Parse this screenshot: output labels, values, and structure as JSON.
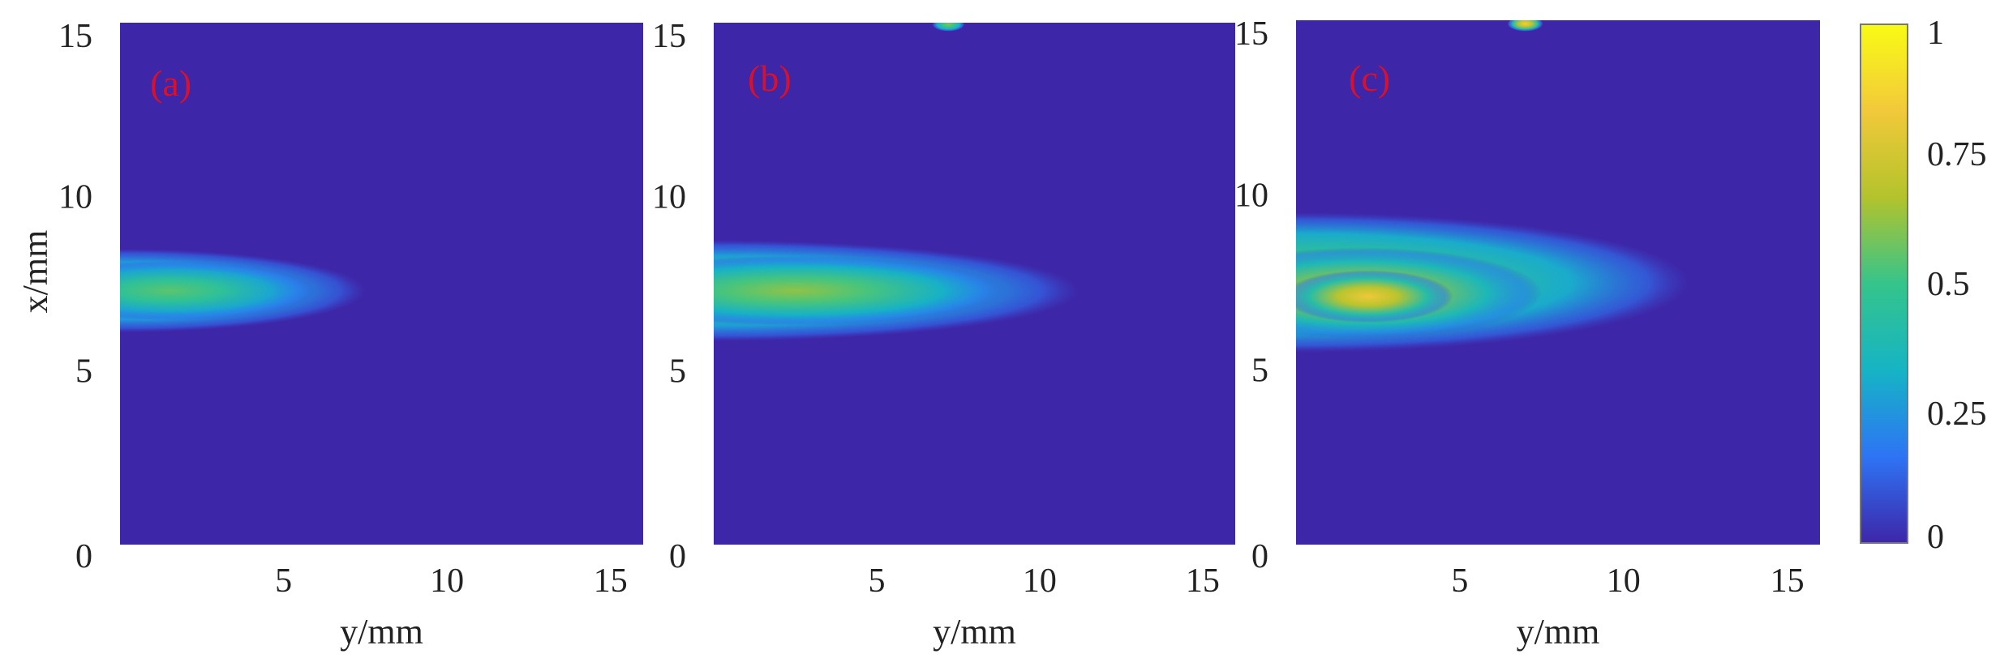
{
  "chart_data": [
    {
      "type": "heatmap",
      "panel_label": "(a)",
      "xlabel": "y/mm",
      "ylabel": "x/mm",
      "xlim": [
        0,
        16
      ],
      "ylim": [
        0,
        15
      ],
      "x_ticks": [
        {
          "value": 5,
          "label": "5"
        },
        {
          "value": 10,
          "label": "10"
        },
        {
          "value": 15,
          "label": "15"
        }
      ],
      "y_ticks": [
        {
          "value": 0,
          "label": "0"
        },
        {
          "value": 5,
          "label": "5"
        },
        {
          "value": 10,
          "label": "10"
        },
        {
          "value": 15,
          "label": "15"
        }
      ],
      "plumes": [
        {
          "cx": 0.0,
          "cy": 7.3,
          "rx": 7.5,
          "ry": 1.2,
          "peak": 0.45
        },
        {
          "cx": 1.5,
          "cy": 7.3,
          "rx": 4.5,
          "ry": 0.85,
          "peak": 0.55
        }
      ],
      "hotspots": []
    },
    {
      "type": "heatmap",
      "panel_label": "(b)",
      "xlabel": "y/mm",
      "ylabel": "",
      "xlim": [
        0,
        16
      ],
      "ylim": [
        0,
        15
      ],
      "x_ticks": [
        {
          "value": 5,
          "label": "5"
        },
        {
          "value": 10,
          "label": "10"
        },
        {
          "value": 15,
          "label": "15"
        }
      ],
      "y_ticks": [
        {
          "value": 0,
          "label": "0"
        },
        {
          "value": 5,
          "label": "5"
        },
        {
          "value": 10,
          "label": "10"
        },
        {
          "value": 15,
          "label": "15"
        }
      ],
      "plumes": [
        {
          "cx": 0.0,
          "cy": 7.3,
          "rx": 11.2,
          "ry": 1.45,
          "peak": 0.5
        },
        {
          "cx": 2.5,
          "cy": 7.3,
          "rx": 6.5,
          "ry": 1.0,
          "peak": 0.62
        }
      ],
      "hotspots": [
        {
          "x": 7.2,
          "y": 14.95,
          "rx": 0.5,
          "ry": 0.2,
          "peak": 0.6
        }
      ]
    },
    {
      "type": "heatmap",
      "panel_label": "(c)",
      "xlabel": "y/mm",
      "ylabel": "",
      "xlim": [
        0,
        16
      ],
      "ylim": [
        0,
        15
      ],
      "x_ticks": [
        {
          "value": 5,
          "label": "5"
        },
        {
          "value": 10,
          "label": "10"
        },
        {
          "value": 15,
          "label": "15"
        }
      ],
      "y_ticks": [
        {
          "value": 0,
          "label": "0"
        },
        {
          "value": 5,
          "label": "5"
        },
        {
          "value": 10,
          "label": "10"
        },
        {
          "value": 15,
          "label": "15"
        }
      ],
      "plumes": [
        {
          "cx": 0.0,
          "cy": 7.5,
          "rx": 12.0,
          "ry": 2.0,
          "peak": 0.58
        },
        {
          "cx": 2.0,
          "cy": 7.2,
          "rx": 5.5,
          "ry": 1.3,
          "peak": 0.72
        },
        {
          "cx": 2.2,
          "cy": 7.1,
          "rx": 2.6,
          "ry": 0.75,
          "peak": 0.82
        }
      ],
      "hotspots": [
        {
          "x": 7.0,
          "y": 14.9,
          "rx": 0.55,
          "ry": 0.22,
          "peak": 0.85
        }
      ]
    }
  ],
  "colorbar": {
    "min": 0,
    "max": 1,
    "ticks": [
      {
        "value": 0,
        "label": "0"
      },
      {
        "value": 0.25,
        "label": "0.25"
      },
      {
        "value": 0.5,
        "label": "0.5"
      },
      {
        "value": 0.75,
        "label": "0.75"
      },
      {
        "value": 1,
        "label": "1"
      }
    ],
    "colors": [
      "#3e26a8",
      "#2e74f5",
      "#16b4c5",
      "#35c48b",
      "#b3c32c",
      "#f2c93a",
      "#f9fb15"
    ]
  }
}
